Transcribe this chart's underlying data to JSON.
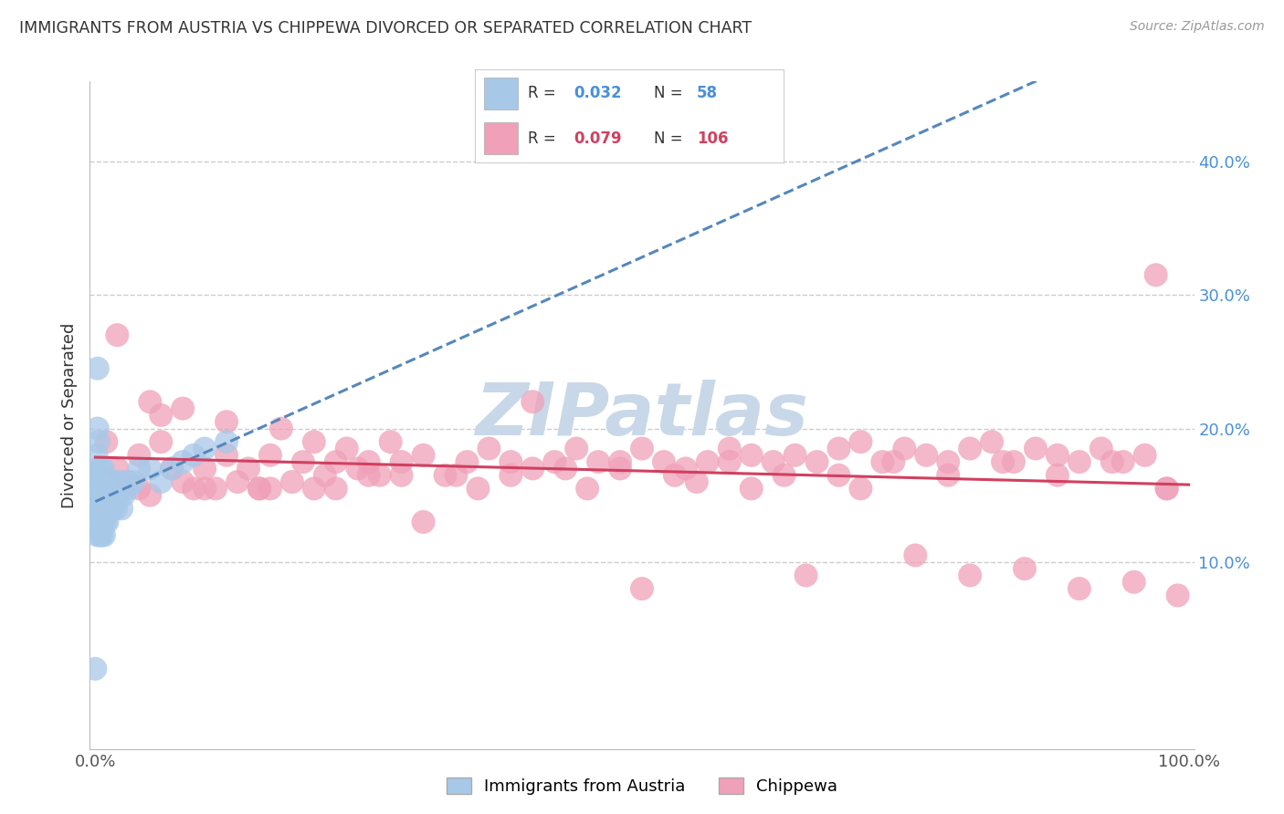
{
  "title": "IMMIGRANTS FROM AUSTRIA VS CHIPPEWA DIVORCED OR SEPARATED CORRELATION CHART",
  "source": "Source: ZipAtlas.com",
  "ylabel": "Divorced or Separated",
  "series": [
    {
      "label": "Immigrants from Austria",
      "R": 0.032,
      "N": 58,
      "color": "#a8c8e8",
      "line_color": "#5588bb",
      "line_style": "--",
      "x": [
        0.001,
        0.001,
        0.001,
        0.002,
        0.002,
        0.002,
        0.002,
        0.003,
        0.003,
        0.003,
        0.003,
        0.004,
        0.004,
        0.004,
        0.005,
        0.005,
        0.005,
        0.006,
        0.006,
        0.006,
        0.007,
        0.007,
        0.007,
        0.008,
        0.008,
        0.008,
        0.009,
        0.009,
        0.01,
        0.01,
        0.011,
        0.011,
        0.012,
        0.012,
        0.013,
        0.014,
        0.015,
        0.016,
        0.017,
        0.018,
        0.019,
        0.02,
        0.022,
        0.024,
        0.026,
        0.028,
        0.03,
        0.035,
        0.04,
        0.05,
        0.06,
        0.07,
        0.08,
        0.09,
        0.1,
        0.12,
        0.0,
        0.002
      ],
      "y": [
        0.14,
        0.16,
        0.18,
        0.12,
        0.14,
        0.16,
        0.2,
        0.13,
        0.15,
        0.17,
        0.19,
        0.12,
        0.14,
        0.16,
        0.13,
        0.15,
        0.17,
        0.12,
        0.14,
        0.16,
        0.13,
        0.15,
        0.17,
        0.12,
        0.14,
        0.16,
        0.13,
        0.15,
        0.14,
        0.16,
        0.13,
        0.15,
        0.14,
        0.16,
        0.15,
        0.14,
        0.15,
        0.14,
        0.16,
        0.15,
        0.14,
        0.15,
        0.16,
        0.14,
        0.15,
        0.16,
        0.155,
        0.16,
        0.17,
        0.17,
        0.16,
        0.17,
        0.175,
        0.18,
        0.185,
        0.19,
        0.02,
        0.245
      ]
    },
    {
      "label": "Chippewa",
      "R": 0.079,
      "N": 106,
      "color": "#f0a0b8",
      "line_color": "#d04060",
      "line_style": "-",
      "x": [
        0.01,
        0.02,
        0.03,
        0.04,
        0.05,
        0.06,
        0.07,
        0.08,
        0.09,
        0.1,
        0.11,
        0.12,
        0.13,
        0.14,
        0.15,
        0.16,
        0.17,
        0.18,
        0.19,
        0.2,
        0.21,
        0.22,
        0.23,
        0.24,
        0.25,
        0.26,
        0.27,
        0.28,
        0.3,
        0.32,
        0.34,
        0.36,
        0.38,
        0.4,
        0.42,
        0.44,
        0.46,
        0.48,
        0.5,
        0.52,
        0.54,
        0.56,
        0.58,
        0.6,
        0.62,
        0.64,
        0.66,
        0.68,
        0.7,
        0.72,
        0.74,
        0.76,
        0.78,
        0.8,
        0.82,
        0.84,
        0.86,
        0.88,
        0.9,
        0.92,
        0.94,
        0.96,
        0.98,
        0.05,
        0.1,
        0.15,
        0.2,
        0.25,
        0.3,
        0.35,
        0.4,
        0.45,
        0.5,
        0.55,
        0.6,
        0.65,
        0.7,
        0.75,
        0.8,
        0.85,
        0.9,
        0.95,
        0.02,
        0.04,
        0.06,
        0.08,
        0.12,
        0.16,
        0.22,
        0.28,
        0.33,
        0.38,
        0.43,
        0.48,
        0.53,
        0.58,
        0.63,
        0.68,
        0.73,
        0.78,
        0.83,
        0.88,
        0.93,
        0.97,
        0.98,
        0.99
      ],
      "y": [
        0.19,
        0.17,
        0.16,
        0.18,
        0.15,
        0.19,
        0.17,
        0.16,
        0.155,
        0.17,
        0.155,
        0.18,
        0.16,
        0.17,
        0.155,
        0.18,
        0.2,
        0.16,
        0.175,
        0.19,
        0.165,
        0.175,
        0.185,
        0.17,
        0.175,
        0.165,
        0.19,
        0.175,
        0.18,
        0.165,
        0.175,
        0.185,
        0.175,
        0.17,
        0.175,
        0.185,
        0.175,
        0.17,
        0.185,
        0.175,
        0.17,
        0.175,
        0.185,
        0.18,
        0.175,
        0.18,
        0.175,
        0.185,
        0.19,
        0.175,
        0.185,
        0.18,
        0.175,
        0.185,
        0.19,
        0.175,
        0.185,
        0.18,
        0.175,
        0.185,
        0.175,
        0.18,
        0.155,
        0.22,
        0.155,
        0.155,
        0.155,
        0.165,
        0.13,
        0.155,
        0.22,
        0.155,
        0.08,
        0.16,
        0.155,
        0.09,
        0.155,
        0.105,
        0.09,
        0.095,
        0.08,
        0.085,
        0.27,
        0.155,
        0.21,
        0.215,
        0.205,
        0.155,
        0.155,
        0.165,
        0.165,
        0.165,
        0.17,
        0.175,
        0.165,
        0.175,
        0.165,
        0.165,
        0.175,
        0.165,
        0.175,
        0.165,
        0.175,
        0.315,
        0.155,
        0.075
      ]
    }
  ],
  "watermark": "ZIPatlas",
  "watermark_color": "#c8d8e8",
  "bg_color": "#ffffff",
  "grid_color": "#cccccc",
  "ytick_labels": [
    "10.0%",
    "20.0%",
    "30.0%",
    "40.0%"
  ],
  "ytick_values": [
    0.1,
    0.2,
    0.3,
    0.4
  ],
  "xlim": [
    -0.005,
    1.005
  ],
  "ylim": [
    -0.04,
    0.46
  ]
}
